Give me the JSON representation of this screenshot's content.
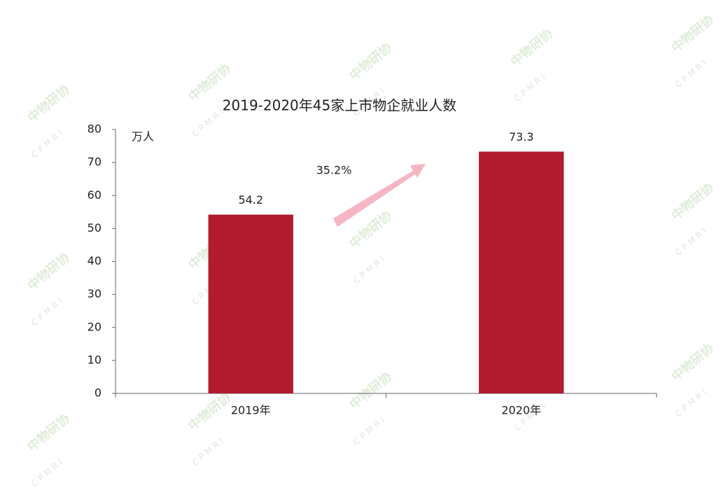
{
  "chart_data": {
    "type": "bar",
    "title": "2019-2020年45家上市物企就业人数",
    "y_unit": "万人",
    "annotation": "35.2%",
    "categories": [
      "2019年",
      "2020年"
    ],
    "values": [
      54.2,
      73.3
    ],
    "color": "#b01c2e",
    "ylim": [
      0,
      80
    ],
    "yticks": [
      0,
      10,
      20,
      30,
      40,
      50,
      60,
      70,
      80
    ],
    "grid": false,
    "watermark": {
      "name": "中物研协",
      "abbr": "CPMRI"
    }
  }
}
